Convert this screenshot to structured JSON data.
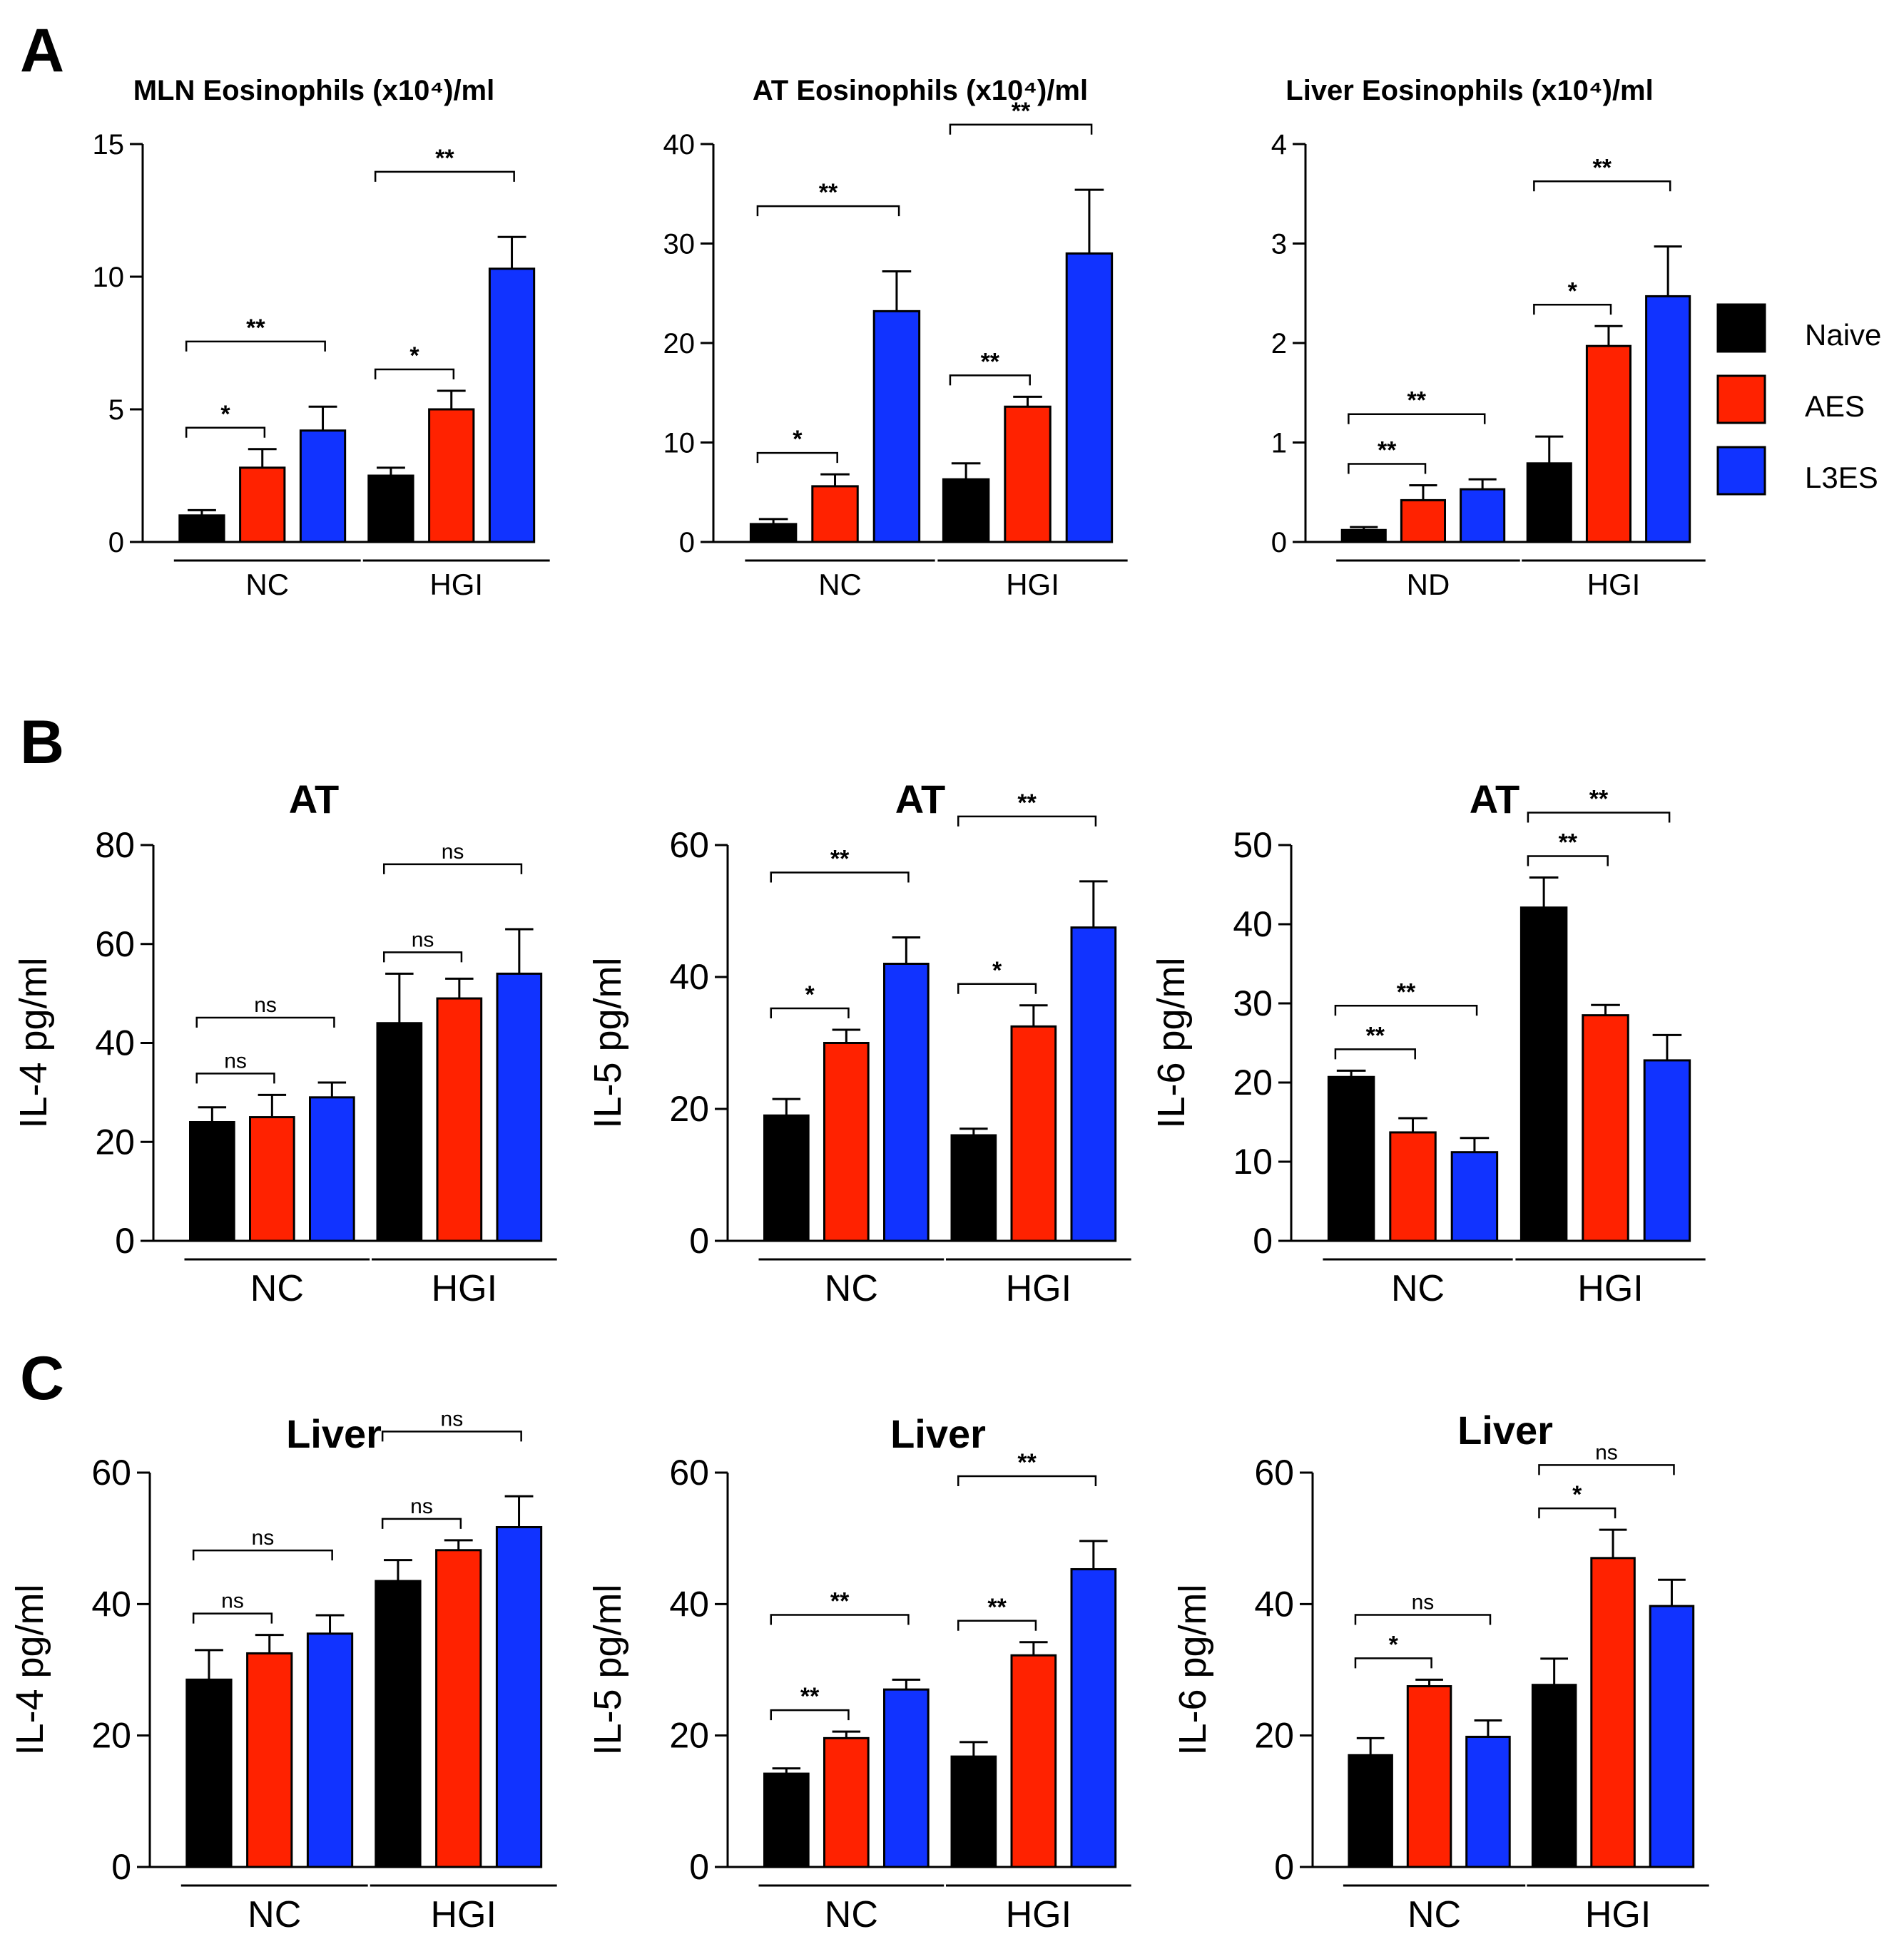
{
  "panel_letters": [
    "A",
    "B",
    "C"
  ],
  "legend": [
    {
      "label": "Naive",
      "color": "#000000"
    },
    {
      "label": "AES",
      "color": "#ff2200"
    },
    {
      "label": "L3ES",
      "color": "#1133ff"
    }
  ],
  "chart_data": [
    {
      "type": "bar",
      "panel": "A",
      "title": "MLN Eosinophils (x10⁴)/ml",
      "ylabel": "",
      "ylim": [
        0,
        15
      ],
      "yticks": [
        0,
        5,
        10,
        15
      ],
      "groups": [
        "NC",
        "HGI"
      ],
      "series_names": [
        "Naive",
        "AES",
        "L3ES"
      ],
      "values": [
        [
          1.0,
          2.8,
          4.2
        ],
        [
          2.5,
          5.0,
          10.3
        ]
      ],
      "errors": [
        [
          0.2,
          0.7,
          0.9
        ],
        [
          0.3,
          0.7,
          1.2
        ]
      ],
      "sig": [
        {
          "g": 0,
          "from": 0,
          "to": 1,
          "label": "*"
        },
        {
          "g": 0,
          "from": 0,
          "to": 2,
          "label": "**"
        },
        {
          "g": 1,
          "from": 0,
          "to": 1,
          "label": "*"
        },
        {
          "g": 1,
          "from": 0,
          "to": 2,
          "label": "**"
        }
      ]
    },
    {
      "type": "bar",
      "panel": "A",
      "title": "AT Eosinophils (x10⁴)/ml",
      "ylabel": "",
      "ylim": [
        0,
        40
      ],
      "yticks": [
        0,
        10,
        20,
        30,
        40
      ],
      "groups": [
        "NC",
        "HGI"
      ],
      "series_names": [
        "Naive",
        "AES",
        "L3ES"
      ],
      "values": [
        [
          1.8,
          5.6,
          23.2
        ],
        [
          6.3,
          13.6,
          29.0
        ]
      ],
      "errors": [
        [
          0.5,
          1.2,
          4.0
        ],
        [
          1.6,
          1.0,
          6.4
        ]
      ],
      "sig": [
        {
          "g": 0,
          "from": 0,
          "to": 1,
          "label": "*"
        },
        {
          "g": 0,
          "from": 0,
          "to": 2,
          "label": "**"
        },
        {
          "g": 1,
          "from": 0,
          "to": 1,
          "label": "**"
        },
        {
          "g": 1,
          "from": 0,
          "to": 2,
          "label": "**"
        }
      ]
    },
    {
      "type": "bar",
      "panel": "A",
      "title": "Liver Eosinophils (x10⁴)/ml",
      "ylabel": "",
      "ylim": [
        0,
        4
      ],
      "yticks": [
        0,
        1,
        2,
        3,
        4
      ],
      "groups": [
        "ND",
        "HGI"
      ],
      "series_names": [
        "Naive",
        "AES",
        "L3ES"
      ],
      "values": [
        [
          0.12,
          0.42,
          0.53
        ],
        [
          0.79,
          1.97,
          2.47
        ]
      ],
      "errors": [
        [
          0.03,
          0.15,
          0.1
        ],
        [
          0.27,
          0.2,
          0.5
        ]
      ],
      "sig": [
        {
          "g": 0,
          "from": 0,
          "to": 1,
          "label": "**"
        },
        {
          "g": 0,
          "from": 0,
          "to": 2,
          "label": "**"
        },
        {
          "g": 1,
          "from": 0,
          "to": 1,
          "label": "*"
        },
        {
          "g": 1,
          "from": 0,
          "to": 2,
          "label": "**"
        }
      ]
    },
    {
      "type": "bar",
      "panel": "B",
      "title": "AT",
      "ylabel": "IL-4 pg/ml",
      "ylim": [
        0,
        80
      ],
      "yticks": [
        0,
        20,
        40,
        60,
        80
      ],
      "groups": [
        "NC",
        "HGI"
      ],
      "series_names": [
        "Naive",
        "AES",
        "L3ES"
      ],
      "values": [
        [
          24,
          25,
          29
        ],
        [
          44,
          49,
          54
        ]
      ],
      "errors": [
        [
          3,
          4.5,
          3
        ],
        [
          10,
          4,
          9
        ]
      ],
      "sig": [
        {
          "g": 0,
          "from": 0,
          "to": 1,
          "label": "ns"
        },
        {
          "g": 0,
          "from": 0,
          "to": 2,
          "label": "ns"
        },
        {
          "g": 1,
          "from": 0,
          "to": 1,
          "label": "ns"
        },
        {
          "g": 1,
          "from": 0,
          "to": 2,
          "label": "ns"
        }
      ]
    },
    {
      "type": "bar",
      "panel": "B",
      "title": "AT",
      "ylabel": "IL-5 pg/ml",
      "ylim": [
        0,
        60
      ],
      "yticks": [
        0,
        20,
        40,
        60
      ],
      "groups": [
        "NC",
        "HGI"
      ],
      "series_names": [
        "Naive",
        "AES",
        "L3ES"
      ],
      "values": [
        [
          19,
          30,
          42
        ],
        [
          16,
          32.5,
          47.5
        ]
      ],
      "errors": [
        [
          2.5,
          2,
          4
        ],
        [
          1,
          3.2,
          7
        ]
      ],
      "sig": [
        {
          "g": 0,
          "from": 0,
          "to": 1,
          "label": "*"
        },
        {
          "g": 0,
          "from": 0,
          "to": 2,
          "label": "**"
        },
        {
          "g": 1,
          "from": 0,
          "to": 1,
          "label": "*"
        },
        {
          "g": 1,
          "from": 0,
          "to": 2,
          "label": "**"
        }
      ]
    },
    {
      "type": "bar",
      "panel": "B",
      "title": "AT",
      "ylabel": "IL-6 pg/ml",
      "ylim": [
        0,
        50
      ],
      "yticks": [
        0,
        10,
        20,
        30,
        40,
        50
      ],
      "groups": [
        "NC",
        "HGI"
      ],
      "series_names": [
        "Naive",
        "AES",
        "L3ES"
      ],
      "values": [
        [
          20.7,
          13.7,
          11.2
        ],
        [
          42.1,
          28.5,
          22.8
        ]
      ],
      "errors": [
        [
          0.8,
          1.8,
          1.8
        ],
        [
          3.8,
          1.3,
          3.2
        ]
      ],
      "sig": [
        {
          "g": 0,
          "from": 0,
          "to": 1,
          "label": "**"
        },
        {
          "g": 0,
          "from": 0,
          "to": 2,
          "label": "**"
        },
        {
          "g": 1,
          "from": 0,
          "to": 1,
          "label": "**"
        },
        {
          "g": 1,
          "from": 0,
          "to": 2,
          "label": "**"
        }
      ]
    },
    {
      "type": "bar",
      "panel": "C",
      "title": "Liver",
      "ylabel": "IL-4 pg/ml",
      "ylim": [
        0,
        60
      ],
      "yticks": [
        0,
        20,
        40,
        60
      ],
      "groups": [
        "NC",
        "HGI"
      ],
      "series_names": [
        "Naive",
        "AES",
        "L3ES"
      ],
      "values": [
        [
          28.5,
          32.5,
          35.5
        ],
        [
          43.5,
          48.2,
          51.7
        ]
      ],
      "errors": [
        [
          4.5,
          2.8,
          2.8
        ],
        [
          3.2,
          1.5,
          4.7
        ]
      ],
      "sig": [
        {
          "g": 0,
          "from": 0,
          "to": 1,
          "label": "ns"
        },
        {
          "g": 0,
          "from": 0,
          "to": 2,
          "label": "ns"
        },
        {
          "g": 1,
          "from": 0,
          "to": 1,
          "label": "ns"
        },
        {
          "g": 1,
          "from": 0,
          "to": 2,
          "label": "ns"
        }
      ]
    },
    {
      "type": "bar",
      "panel": "C",
      "title": "Liver",
      "ylabel": "IL-5 pg/ml",
      "ylim": [
        0,
        60
      ],
      "yticks": [
        0,
        20,
        40,
        60
      ],
      "groups": [
        "NC",
        "HGI"
      ],
      "series_names": [
        "Naive",
        "AES",
        "L3ES"
      ],
      "values": [
        [
          14.2,
          19.6,
          27
        ],
        [
          16.8,
          32.2,
          45.3
        ]
      ],
      "errors": [
        [
          0.8,
          1,
          1.5
        ],
        [
          2.2,
          2,
          4.3
        ]
      ],
      "sig": [
        {
          "g": 0,
          "from": 0,
          "to": 1,
          "label": "**"
        },
        {
          "g": 0,
          "from": 0,
          "to": 2,
          "label": "**"
        },
        {
          "g": 1,
          "from": 0,
          "to": 1,
          "label": "**"
        },
        {
          "g": 1,
          "from": 0,
          "to": 2,
          "label": "**"
        }
      ]
    },
    {
      "type": "bar",
      "panel": "C",
      "title": "Liver",
      "ylabel": "IL-6 pg/ml",
      "ylim": [
        0,
        60
      ],
      "yticks": [
        0,
        20,
        40,
        60
      ],
      "groups": [
        "NC",
        "HGI"
      ],
      "series_names": [
        "Naive",
        "AES",
        "L3ES"
      ],
      "values": [
        [
          17,
          27.5,
          19.8
        ],
        [
          27.7,
          47,
          39.7
        ]
      ],
      "errors": [
        [
          2.6,
          1,
          2.5
        ],
        [
          4,
          4.3,
          4
        ]
      ],
      "sig": [
        {
          "g": 0,
          "from": 0,
          "to": 1,
          "label": "*"
        },
        {
          "g": 0,
          "from": 0,
          "to": 2,
          "label": "ns"
        },
        {
          "g": 1,
          "from": 0,
          "to": 1,
          "label": "*"
        },
        {
          "g": 1,
          "from": 0,
          "to": 2,
          "label": "ns"
        }
      ]
    }
  ]
}
